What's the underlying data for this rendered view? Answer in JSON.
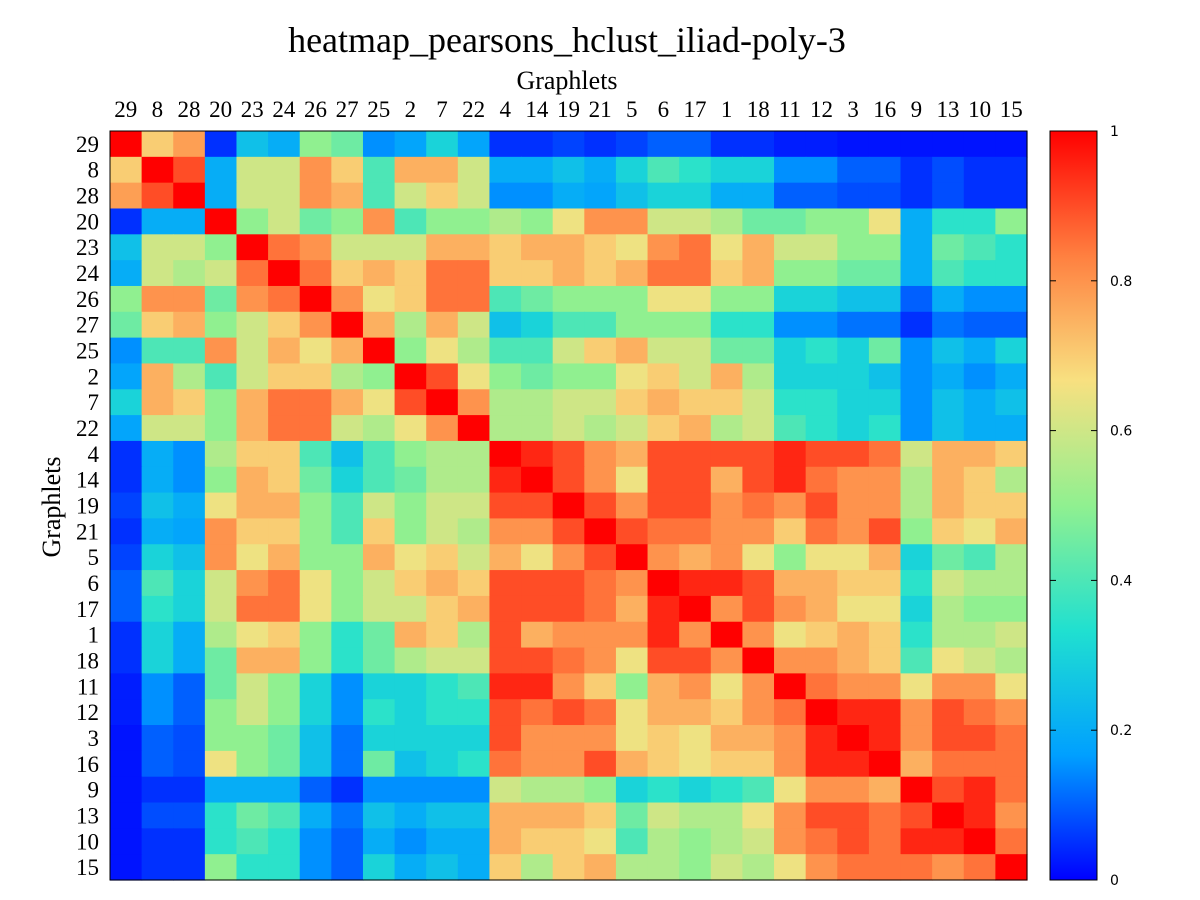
{
  "chart_data": {
    "type": "heatmap",
    "title": "heatmap_pearsons_hclust_iliad-poly-3",
    "xlabel": "Graphlets",
    "ylabel": "Graphlets",
    "labels": [
      "29",
      "8",
      "28",
      "20",
      "23",
      "24",
      "26",
      "27",
      "25",
      "2",
      "7",
      "22",
      "4",
      "14",
      "19",
      "21",
      "5",
      "6",
      "17",
      "1",
      "18",
      "11",
      "12",
      "3",
      "16",
      "9",
      "13",
      "10",
      "15"
    ],
    "color_scale": {
      "min": 0,
      "max": 1,
      "ticks": [
        0,
        0.2,
        0.4,
        0.6,
        0.8,
        1
      ],
      "tick_labels": [
        "0",
        "0.2",
        "0.4",
        "0.6",
        "0.8",
        "1"
      ],
      "colormap": [
        "#0000ff",
        "#00a0ff",
        "#20e0d0",
        "#90f090",
        "#f8e080",
        "#ff8040",
        "#ff0000"
      ]
    },
    "values": [
      [
        1.0,
        0.7,
        0.78,
        0.05,
        0.25,
        0.2,
        0.5,
        0.45,
        0.15,
        0.18,
        0.3,
        0.18,
        0.05,
        0.05,
        0.07,
        0.05,
        0.07,
        0.1,
        0.1,
        0.05,
        0.05,
        0.03,
        0.03,
        0.02,
        0.02,
        0.02,
        0.02,
        0.02,
        0.02
      ],
      [
        0.7,
        1.0,
        0.9,
        0.2,
        0.6,
        0.6,
        0.8,
        0.7,
        0.4,
        0.75,
        0.75,
        0.6,
        0.2,
        0.2,
        0.25,
        0.2,
        0.3,
        0.4,
        0.35,
        0.3,
        0.3,
        0.15,
        0.15,
        0.1,
        0.1,
        0.05,
        0.08,
        0.05,
        0.05
      ],
      [
        0.78,
        0.9,
        1.0,
        0.2,
        0.6,
        0.6,
        0.8,
        0.75,
        0.4,
        0.6,
        0.7,
        0.6,
        0.15,
        0.15,
        0.2,
        0.18,
        0.25,
        0.3,
        0.3,
        0.2,
        0.2,
        0.1,
        0.1,
        0.08,
        0.08,
        0.05,
        0.08,
        0.05,
        0.05
      ],
      [
        0.05,
        0.2,
        0.2,
        1.0,
        0.5,
        0.6,
        0.45,
        0.5,
        0.8,
        0.4,
        0.5,
        0.5,
        0.55,
        0.5,
        0.65,
        0.8,
        0.8,
        0.6,
        0.6,
        0.55,
        0.45,
        0.45,
        0.5,
        0.5,
        0.65,
        0.2,
        0.35,
        0.35,
        0.5
      ],
      [
        0.25,
        0.6,
        0.6,
        0.5,
        1.0,
        0.85,
        0.8,
        0.6,
        0.6,
        0.6,
        0.75,
        0.75,
        0.7,
        0.75,
        0.75,
        0.7,
        0.65,
        0.8,
        0.85,
        0.65,
        0.75,
        0.6,
        0.6,
        0.5,
        0.5,
        0.2,
        0.45,
        0.4,
        0.35
      ],
      [
        0.2,
        0.6,
        0.55,
        0.6,
        0.85,
        1.0,
        0.85,
        0.7,
        0.75,
        0.7,
        0.85,
        0.85,
        0.7,
        0.7,
        0.75,
        0.7,
        0.75,
        0.85,
        0.85,
        0.7,
        0.75,
        0.5,
        0.5,
        0.45,
        0.45,
        0.2,
        0.4,
        0.35,
        0.35
      ],
      [
        0.5,
        0.8,
        0.8,
        0.45,
        0.8,
        0.85,
        1.0,
        0.8,
        0.65,
        0.7,
        0.85,
        0.85,
        0.4,
        0.45,
        0.5,
        0.5,
        0.5,
        0.65,
        0.65,
        0.5,
        0.5,
        0.3,
        0.3,
        0.25,
        0.25,
        0.1,
        0.2,
        0.15,
        0.15
      ],
      [
        0.45,
        0.7,
        0.75,
        0.5,
        0.6,
        0.7,
        0.8,
        1.0,
        0.75,
        0.55,
        0.75,
        0.6,
        0.25,
        0.3,
        0.4,
        0.4,
        0.5,
        0.5,
        0.5,
        0.35,
        0.35,
        0.15,
        0.15,
        0.12,
        0.12,
        0.05,
        0.12,
        0.1,
        0.1
      ],
      [
        0.15,
        0.4,
        0.4,
        0.8,
        0.6,
        0.75,
        0.65,
        0.75,
        1.0,
        0.5,
        0.65,
        0.55,
        0.4,
        0.4,
        0.6,
        0.7,
        0.75,
        0.6,
        0.6,
        0.45,
        0.45,
        0.3,
        0.35,
        0.3,
        0.45,
        0.15,
        0.25,
        0.2,
        0.3
      ],
      [
        0.18,
        0.75,
        0.55,
        0.4,
        0.6,
        0.7,
        0.7,
        0.55,
        0.5,
        1.0,
        0.9,
        0.65,
        0.5,
        0.45,
        0.5,
        0.5,
        0.65,
        0.7,
        0.6,
        0.75,
        0.55,
        0.3,
        0.3,
        0.3,
        0.25,
        0.15,
        0.2,
        0.15,
        0.2
      ],
      [
        0.3,
        0.75,
        0.7,
        0.5,
        0.75,
        0.85,
        0.85,
        0.75,
        0.65,
        0.9,
        1.0,
        0.8,
        0.55,
        0.55,
        0.6,
        0.6,
        0.7,
        0.75,
        0.7,
        0.7,
        0.6,
        0.35,
        0.35,
        0.3,
        0.3,
        0.15,
        0.25,
        0.2,
        0.25
      ],
      [
        0.18,
        0.6,
        0.6,
        0.5,
        0.75,
        0.85,
        0.85,
        0.6,
        0.55,
        0.65,
        0.8,
        1.0,
        0.55,
        0.55,
        0.6,
        0.55,
        0.6,
        0.7,
        0.75,
        0.55,
        0.6,
        0.4,
        0.35,
        0.3,
        0.35,
        0.15,
        0.25,
        0.2,
        0.2
      ],
      [
        0.05,
        0.2,
        0.15,
        0.55,
        0.7,
        0.7,
        0.4,
        0.25,
        0.4,
        0.5,
        0.55,
        0.55,
        1.0,
        0.95,
        0.9,
        0.8,
        0.75,
        0.9,
        0.9,
        0.9,
        0.9,
        0.95,
        0.9,
        0.9,
        0.85,
        0.6,
        0.75,
        0.75,
        0.7
      ],
      [
        0.05,
        0.2,
        0.15,
        0.5,
        0.75,
        0.7,
        0.45,
        0.3,
        0.4,
        0.45,
        0.55,
        0.55,
        0.95,
        1.0,
        0.9,
        0.8,
        0.65,
        0.9,
        0.9,
        0.75,
        0.9,
        0.95,
        0.85,
        0.8,
        0.8,
        0.55,
        0.75,
        0.7,
        0.55
      ],
      [
        0.07,
        0.25,
        0.2,
        0.65,
        0.75,
        0.75,
        0.5,
        0.4,
        0.6,
        0.5,
        0.6,
        0.6,
        0.9,
        0.9,
        1.0,
        0.9,
        0.8,
        0.9,
        0.9,
        0.8,
        0.85,
        0.8,
        0.9,
        0.8,
        0.8,
        0.55,
        0.75,
        0.7,
        0.7
      ],
      [
        0.05,
        0.2,
        0.18,
        0.8,
        0.7,
        0.7,
        0.5,
        0.4,
        0.7,
        0.5,
        0.6,
        0.55,
        0.8,
        0.8,
        0.9,
        1.0,
        0.9,
        0.85,
        0.85,
        0.8,
        0.8,
        0.7,
        0.85,
        0.8,
        0.9,
        0.5,
        0.7,
        0.65,
        0.75
      ],
      [
        0.07,
        0.3,
        0.25,
        0.8,
        0.65,
        0.75,
        0.5,
        0.5,
        0.75,
        0.65,
        0.7,
        0.6,
        0.75,
        0.65,
        0.8,
        0.9,
        1.0,
        0.8,
        0.75,
        0.8,
        0.65,
        0.5,
        0.65,
        0.65,
        0.75,
        0.3,
        0.45,
        0.4,
        0.55
      ],
      [
        0.1,
        0.4,
        0.3,
        0.6,
        0.8,
        0.85,
        0.65,
        0.5,
        0.6,
        0.7,
        0.75,
        0.7,
        0.9,
        0.9,
        0.9,
        0.85,
        0.8,
        1.0,
        0.95,
        0.95,
        0.9,
        0.75,
        0.75,
        0.7,
        0.7,
        0.35,
        0.6,
        0.55,
        0.55
      ],
      [
        0.1,
        0.35,
        0.3,
        0.6,
        0.85,
        0.85,
        0.65,
        0.5,
        0.6,
        0.6,
        0.7,
        0.75,
        0.9,
        0.9,
        0.9,
        0.85,
        0.75,
        0.95,
        1.0,
        0.8,
        0.9,
        0.8,
        0.75,
        0.65,
        0.65,
        0.3,
        0.55,
        0.5,
        0.5
      ],
      [
        0.05,
        0.3,
        0.2,
        0.55,
        0.65,
        0.7,
        0.5,
        0.35,
        0.45,
        0.75,
        0.7,
        0.55,
        0.9,
        0.75,
        0.8,
        0.8,
        0.8,
        0.95,
        0.8,
        1.0,
        0.8,
        0.65,
        0.7,
        0.75,
        0.7,
        0.35,
        0.55,
        0.55,
        0.6
      ],
      [
        0.05,
        0.3,
        0.2,
        0.45,
        0.75,
        0.75,
        0.5,
        0.35,
        0.45,
        0.55,
        0.6,
        0.6,
        0.9,
        0.9,
        0.85,
        0.8,
        0.65,
        0.9,
        0.9,
        0.8,
        1.0,
        0.8,
        0.8,
        0.75,
        0.7,
        0.4,
        0.65,
        0.6,
        0.55
      ],
      [
        0.03,
        0.15,
        0.1,
        0.45,
        0.6,
        0.5,
        0.3,
        0.15,
        0.3,
        0.3,
        0.35,
        0.4,
        0.95,
        0.95,
        0.8,
        0.7,
        0.5,
        0.75,
        0.8,
        0.65,
        0.8,
        1.0,
        0.85,
        0.8,
        0.8,
        0.65,
        0.8,
        0.8,
        0.65
      ],
      [
        0.03,
        0.15,
        0.1,
        0.5,
        0.6,
        0.5,
        0.3,
        0.15,
        0.35,
        0.3,
        0.35,
        0.35,
        0.9,
        0.85,
        0.9,
        0.85,
        0.65,
        0.75,
        0.75,
        0.7,
        0.8,
        0.85,
        1.0,
        0.95,
        0.95,
        0.8,
        0.9,
        0.85,
        0.8
      ],
      [
        0.02,
        0.1,
        0.08,
        0.5,
        0.5,
        0.45,
        0.25,
        0.12,
        0.3,
        0.3,
        0.3,
        0.3,
        0.9,
        0.8,
        0.8,
        0.8,
        0.65,
        0.7,
        0.65,
        0.75,
        0.75,
        0.8,
        0.95,
        1.0,
        0.95,
        0.8,
        0.9,
        0.9,
        0.85
      ],
      [
        0.02,
        0.1,
        0.08,
        0.65,
        0.5,
        0.45,
        0.25,
        0.12,
        0.45,
        0.25,
        0.3,
        0.35,
        0.85,
        0.8,
        0.8,
        0.9,
        0.75,
        0.7,
        0.65,
        0.7,
        0.7,
        0.8,
        0.95,
        0.95,
        1.0,
        0.75,
        0.85,
        0.85,
        0.85
      ],
      [
        0.02,
        0.05,
        0.05,
        0.2,
        0.2,
        0.2,
        0.1,
        0.05,
        0.15,
        0.15,
        0.15,
        0.15,
        0.6,
        0.55,
        0.55,
        0.5,
        0.3,
        0.35,
        0.3,
        0.35,
        0.4,
        0.65,
        0.8,
        0.8,
        0.75,
        1.0,
        0.9,
        0.95,
        0.85
      ],
      [
        0.02,
        0.08,
        0.08,
        0.35,
        0.45,
        0.4,
        0.2,
        0.12,
        0.25,
        0.2,
        0.25,
        0.25,
        0.75,
        0.75,
        0.75,
        0.7,
        0.45,
        0.6,
        0.55,
        0.55,
        0.65,
        0.8,
        0.9,
        0.9,
        0.85,
        0.9,
        1.0,
        0.95,
        0.8
      ],
      [
        0.02,
        0.05,
        0.05,
        0.35,
        0.4,
        0.35,
        0.15,
        0.1,
        0.2,
        0.15,
        0.2,
        0.2,
        0.75,
        0.7,
        0.7,
        0.65,
        0.4,
        0.55,
        0.5,
        0.55,
        0.6,
        0.8,
        0.85,
        0.9,
        0.85,
        0.95,
        0.95,
        1.0,
        0.85
      ],
      [
        0.02,
        0.05,
        0.05,
        0.5,
        0.35,
        0.35,
        0.15,
        0.1,
        0.3,
        0.2,
        0.25,
        0.2,
        0.7,
        0.55,
        0.7,
        0.75,
        0.55,
        0.55,
        0.5,
        0.6,
        0.55,
        0.65,
        0.8,
        0.85,
        0.85,
        0.85,
        0.8,
        0.85,
        1.0
      ]
    ]
  }
}
